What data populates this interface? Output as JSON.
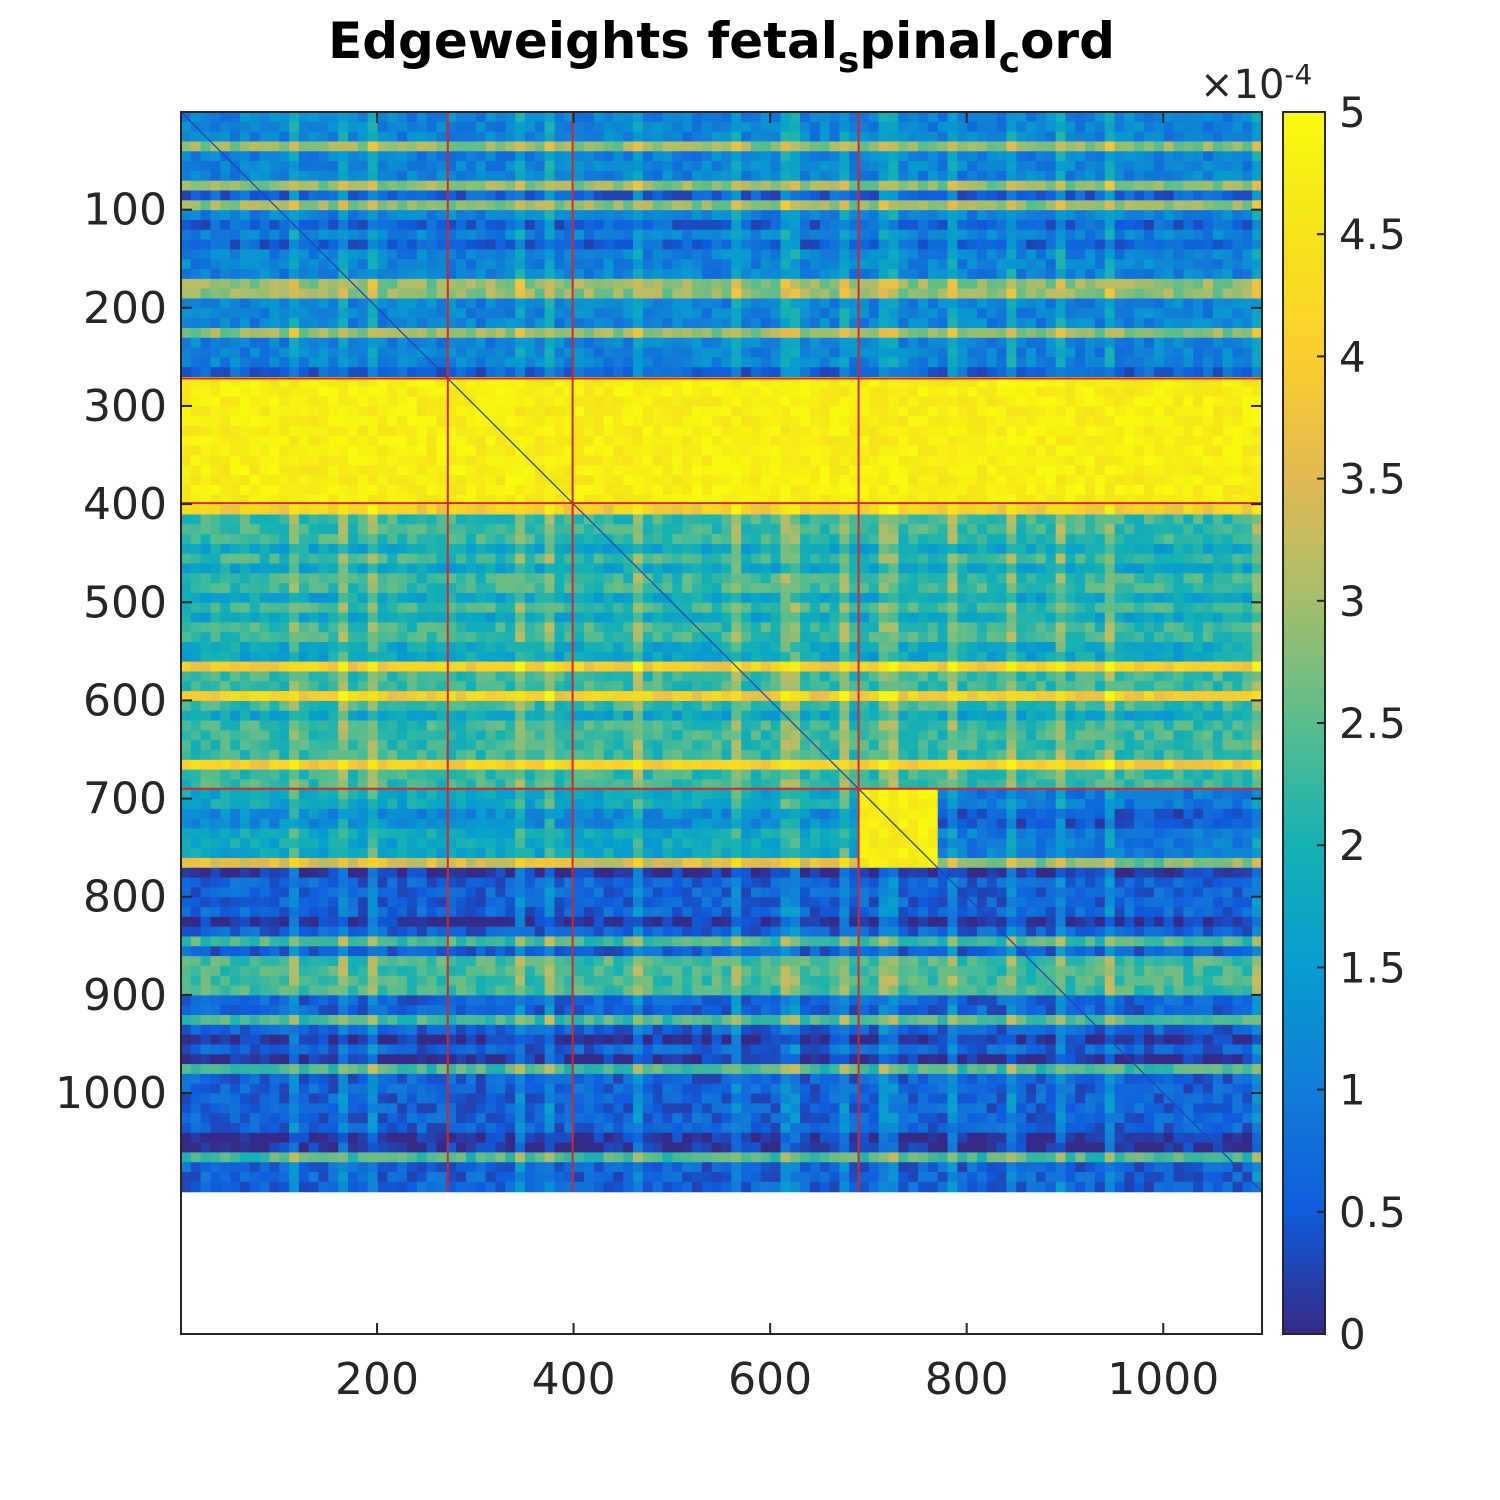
{
  "chart_data": {
    "type": "heatmap",
    "title_main": "Edgeweights fetal",
    "title_sub1": "s",
    "title_mid": "pinal",
    "title_sub2": "c",
    "title_end": "ord",
    "matrix_size": 1100,
    "xlim": [
      0.5,
      1100.5
    ],
    "ylim": [
      0.5,
      1245.5
    ],
    "x_ticks": [
      200,
      400,
      600,
      800,
      1000
    ],
    "y_ticks": [
      100,
      200,
      300,
      400,
      500,
      600,
      700,
      800,
      900,
      1000
    ],
    "colorbar": {
      "min": 0,
      "max": 5,
      "ticks": [
        0,
        0.5,
        1,
        1.5,
        2,
        2.5,
        3,
        3.5,
        4,
        4.5,
        5
      ],
      "tick_labels": [
        "0",
        "0.5",
        "1",
        "1.5",
        "2",
        "2.5",
        "3",
        "3.5",
        "4",
        "4.5",
        "5"
      ],
      "multiplier_prefix": "×10",
      "multiplier_exponent": "-4",
      "colormap": "parula"
    },
    "cluster_boundaries": [
      272,
      399,
      690
    ],
    "boundary_color": "#d62728",
    "blocks": [
      {
        "rows": [
          272,
          399
        ],
        "cols": [
          1,
          1100
        ],
        "level": 0.92
      },
      {
        "rows": [
          690,
          775
        ],
        "cols": [
          690,
          772
        ],
        "level": 0.97
      },
      {
        "rows": [
          400,
          690
        ],
        "cols": [
          1,
          1100
        ],
        "level": 0.45
      },
      {
        "rows": [
          690,
          775
        ],
        "cols": [
          1,
          690
        ],
        "level": 0.35
      },
      {
        "rows": [
          775,
          1100
        ],
        "cols": [
          1,
          1100
        ],
        "level": 0.12
      },
      {
        "rows": [
          1,
          272
        ],
        "cols": [
          1,
          1100
        ],
        "level": 0.22
      }
    ]
  }
}
